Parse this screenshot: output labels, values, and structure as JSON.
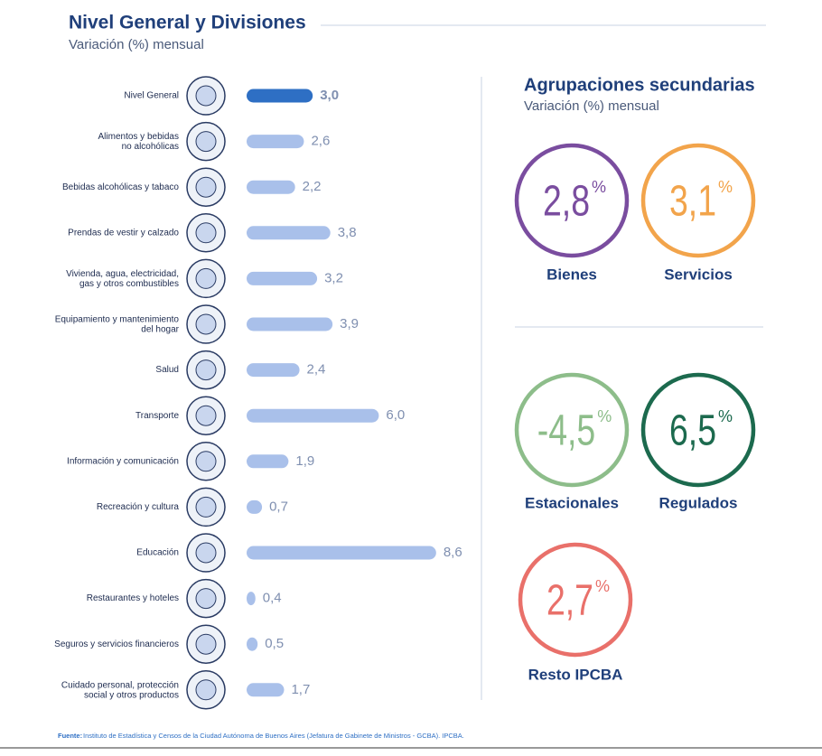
{
  "chart_data": {
    "type": "bar",
    "orientation": "horizontal",
    "title": "Nivel General y Divisiones",
    "subtitle": "Variación (%) mensual",
    "categories": [
      "Nivel General",
      "Alimentos y bebidas\nno alcohólicas",
      "Bebidas alcohólicas y tabaco",
      "Prendas de vestir y calzado",
      "Vivienda, agua, electricidad,\ngas y otros combustibles",
      "Equipamiento y mantenimiento\ndel hogar",
      "Salud",
      "Transporte",
      "Información y comunicación",
      "Recreación y cultura",
      "Educación",
      "Restaurantes y hoteles",
      "Seguros y servicios financieros",
      "Cuidado personal, protección\nsocial y otros productos"
    ],
    "values": [
      3.0,
      2.6,
      2.2,
      3.8,
      3.2,
      3.9,
      2.4,
      6.0,
      1.9,
      0.7,
      8.6,
      0.4,
      0.5,
      1.7
    ],
    "value_labels": [
      "3,0",
      "2,6",
      "2,2",
      "3,8",
      "3,2",
      "3,9",
      "2,4",
      "6,0",
      "1,9",
      "0,7",
      "8,6",
      "0,4",
      "0,5",
      "1,7"
    ],
    "colors": [
      "#2e6fc4",
      "#a9c0ea",
      "#a9c0ea",
      "#a9c0ea",
      "#a9c0ea",
      "#a9c0ea",
      "#a9c0ea",
      "#a9c0ea",
      "#a9c0ea",
      "#a9c0ea",
      "#a9c0ea",
      "#a9c0ea",
      "#a9c0ea",
      "#a9c0ea"
    ]
  },
  "secondary": {
    "title": "Agrupaciones secundarias",
    "subtitle": "Variación (%) mensual",
    "unit": "%",
    "items": [
      {
        "name": "Bienes",
        "value": 2.8,
        "value_label": "2,8",
        "color": "#7a4d9f"
      },
      {
        "name": "Servicios",
        "value": 3.1,
        "value_label": "3,1",
        "color": "#f2a44b"
      },
      {
        "name": "Estacionales",
        "value": -4.5,
        "value_label": "-4,5",
        "color": "#8dbd8a"
      },
      {
        "name": "Regulados",
        "value": 6.5,
        "value_label": "6,5",
        "color": "#1c6a4e"
      },
      {
        "name": "Resto IPCBA",
        "value": 2.7,
        "value_label": "2,7",
        "color": "#e9706a"
      }
    ]
  },
  "source": {
    "label": "Fuente:",
    "text": "Instituto de Estadística y Censos de la Ciudad Autónoma de Buenos Aires (Jefatura de Gabinete de Ministros - GCBA). IPCBA."
  }
}
